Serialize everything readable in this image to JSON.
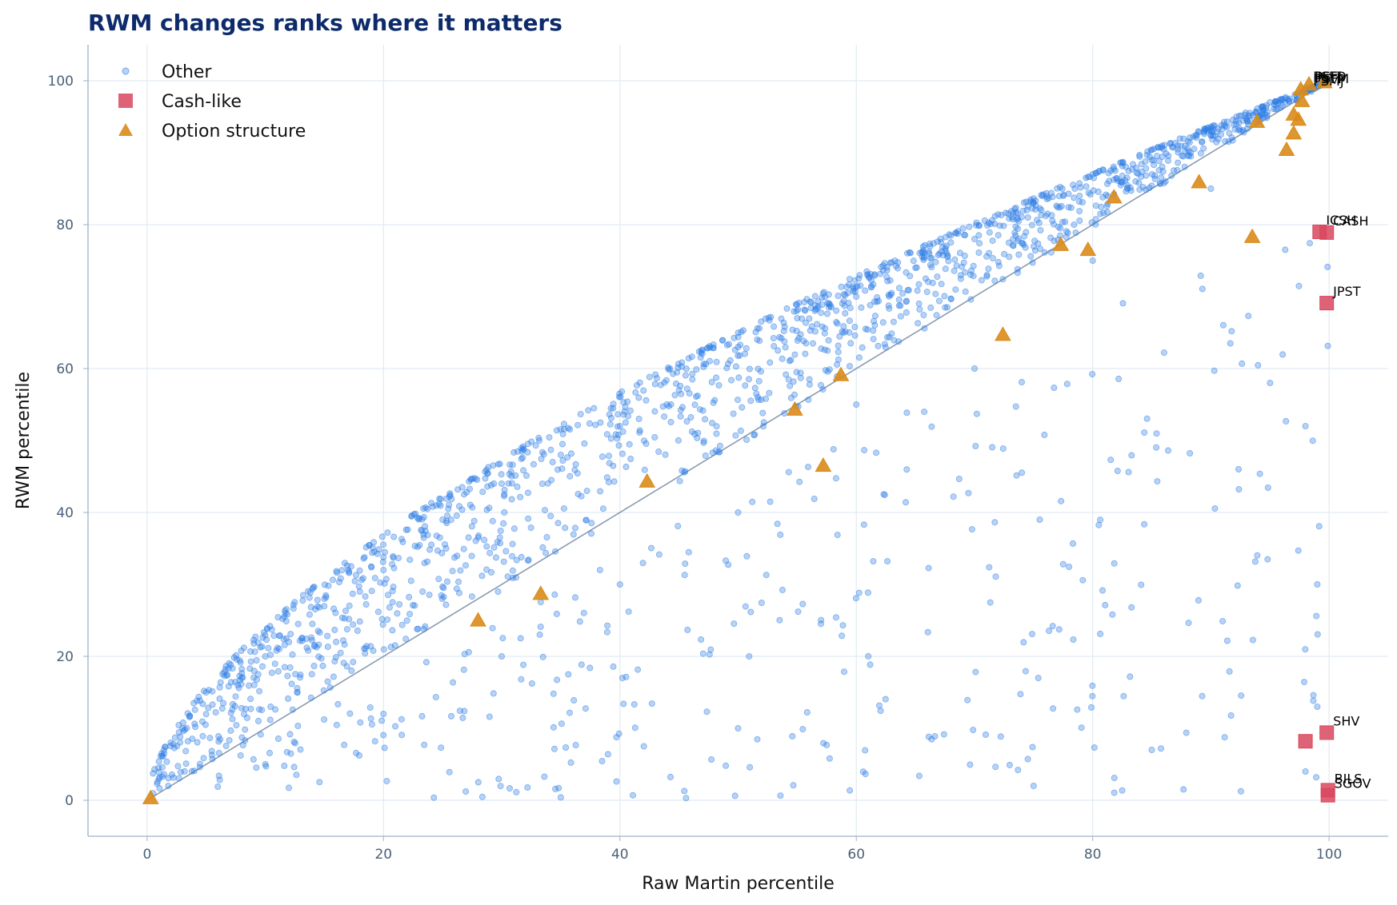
{
  "chart_data": {
    "type": "scatter",
    "title": "RWM changes ranks where it matters",
    "xlabel": "Raw Martin percentile",
    "ylabel": "RWM percentile",
    "xlim": [
      -5,
      105
    ],
    "ylim": [
      -5,
      105
    ],
    "xticks": [
      0,
      20,
      40,
      60,
      80,
      100
    ],
    "yticks": [
      0,
      20,
      40,
      60,
      80,
      100
    ],
    "grid": true,
    "legend_position": "top-left",
    "diagonal_reference": true,
    "colors": {
      "other": "#2f7ee6",
      "cash_like": "#d9485f",
      "option_structure": "#d98b19",
      "diagonal": "#8a9bb0",
      "grid": "#e1eaf2",
      "axis": "#9fb2c5",
      "title": "#0d2b6b"
    },
    "series": [
      {
        "name": "Other",
        "marker": "circle",
        "approx_count": 1900,
        "sample_points": [
          [
            1,
            3
          ],
          [
            2,
            8
          ],
          [
            3,
            10
          ],
          [
            5,
            15
          ],
          [
            8,
            17
          ],
          [
            10,
            20
          ],
          [
            12,
            22
          ],
          [
            15,
            28
          ],
          [
            18,
            29
          ],
          [
            20,
            32
          ],
          [
            25,
            39
          ],
          [
            30,
            44
          ],
          [
            35,
            48
          ],
          [
            40,
            52
          ],
          [
            45,
            57
          ],
          [
            50,
            63
          ],
          [
            55,
            67
          ],
          [
            60,
            70
          ],
          [
            65,
            74
          ],
          [
            70,
            78
          ],
          [
            75,
            83
          ],
          [
            80,
            87
          ],
          [
            85,
            89
          ],
          [
            90,
            93
          ],
          [
            95,
            97
          ],
          [
            98,
            99
          ],
          [
            10,
            5
          ],
          [
            20,
            12
          ],
          [
            30,
            20
          ],
          [
            40,
            30
          ],
          [
            50,
            40
          ],
          [
            60,
            55
          ],
          [
            70,
            60
          ],
          [
            80,
            75
          ],
          [
            90,
            85
          ],
          [
            95,
            58
          ],
          [
            98,
            52
          ],
          [
            99,
            30
          ],
          [
            99,
            13
          ],
          [
            98,
            4
          ],
          [
            85,
            7
          ],
          [
            75,
            2
          ],
          [
            50,
            10
          ],
          [
            35,
            0.4
          ]
        ]
      },
      {
        "name": "Cash-like",
        "marker": "square",
        "points": [
          {
            "label": "ICSH",
            "x": 99.2,
            "y": 79.0
          },
          {
            "label": "CASH",
            "x": 99.8,
            "y": 78.9
          },
          {
            "label": "JPST",
            "x": 99.8,
            "y": 69.1
          },
          {
            "label": "SHV",
            "x": 99.8,
            "y": 9.4
          },
          {
            "label": "",
            "x": 98.0,
            "y": 8.2
          },
          {
            "label": "BILS",
            "x": 99.9,
            "y": 1.4
          },
          {
            "label": "SGOV",
            "x": 99.9,
            "y": 0.7
          }
        ]
      },
      {
        "name": "Option structure",
        "marker": "triangle",
        "points": [
          {
            "x": 0.3,
            "y": 0.3
          },
          {
            "x": 28,
            "y": 25
          },
          {
            "x": 33.3,
            "y": 28.7
          },
          {
            "x": 42.3,
            "y": 44.3
          },
          {
            "x": 54.8,
            "y": 54.3
          },
          {
            "x": 57.2,
            "y": 46.5
          },
          {
            "x": 58.7,
            "y": 59.1
          },
          {
            "x": 72.4,
            "y": 64.7
          },
          {
            "x": 77.3,
            "y": 77.2
          },
          {
            "x": 79.6,
            "y": 76.5
          },
          {
            "x": 81.8,
            "y": 83.8
          },
          {
            "x": 89,
            "y": 85.9
          },
          {
            "x": 93.5,
            "y": 78.3
          },
          {
            "x": 93.9,
            "y": 94.3
          },
          {
            "x": 96.4,
            "y": 90.4
          },
          {
            "x": 97,
            "y": 92.7
          },
          {
            "x": 97,
            "y": 95.3
          },
          {
            "x": 97.4,
            "y": 94.6
          },
          {
            "x": 97.7,
            "y": 97.2
          },
          {
            "x": 97.6,
            "y": 98.8
          },
          {
            "x": 98.3,
            "y": 99.5
          },
          {
            "x": 99.6,
            "y": 99.8
          }
        ]
      }
    ],
    "top_right_labels": [
      "PSFD",
      "PSFM",
      "PSMJ",
      "PSFJ",
      "PSTP"
    ],
    "top_right_label_visible": "PSFMJT"
  }
}
